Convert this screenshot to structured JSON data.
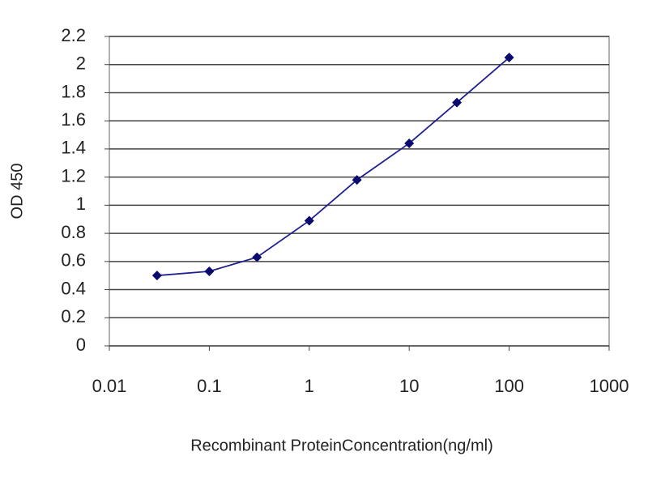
{
  "chart_data": {
    "type": "line",
    "x": [
      0.03,
      0.1,
      0.3,
      1,
      3,
      10,
      30,
      100
    ],
    "values": [
      0.5,
      0.53,
      0.63,
      0.89,
      1.18,
      1.44,
      1.73,
      2.05
    ],
    "color": "#1f1f8f",
    "xscale": "log",
    "xlim": [
      0.01,
      1000
    ],
    "xticks": [
      0.01,
      0.1,
      1,
      10,
      100,
      1000
    ],
    "ylim": [
      0,
      2.2
    ],
    "yticks": [
      0,
      0.2,
      0.4,
      0.6,
      0.8,
      1,
      1.2,
      1.4,
      1.6,
      1.8,
      2,
      2.2
    ],
    "grid": true,
    "xlabel": "Recombinant ProteinConcentration(ng/ml)",
    "ylabel": "OD 450"
  }
}
